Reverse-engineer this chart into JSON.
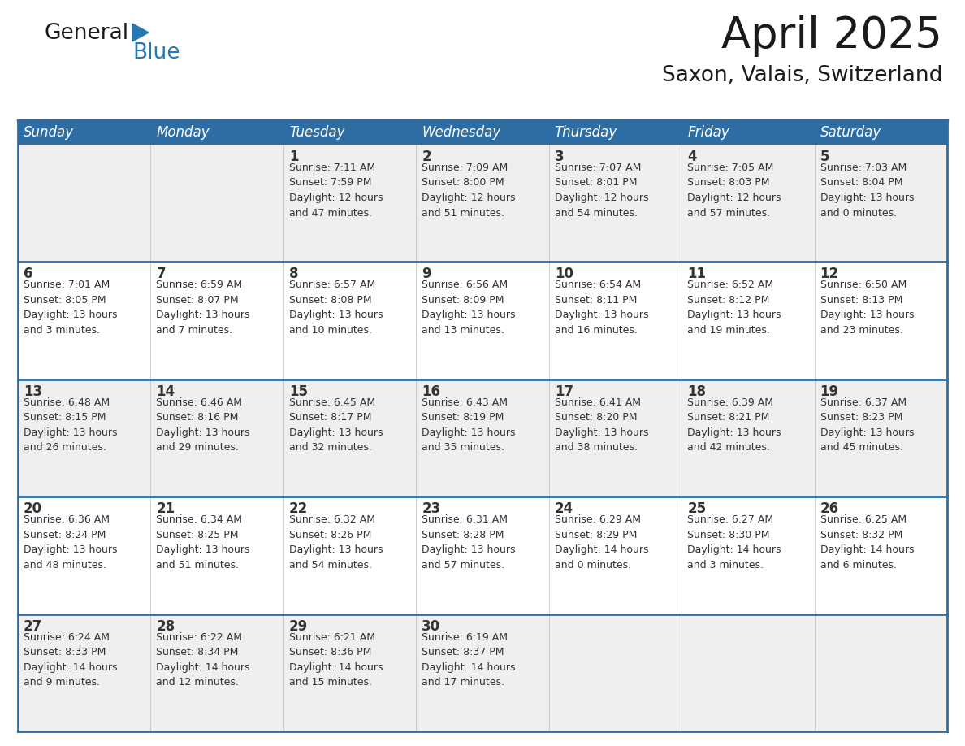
{
  "title": "April 2025",
  "subtitle": "Saxon, Valais, Switzerland",
  "header_bg_color": "#2E6DA4",
  "header_text_color": "#FFFFFF",
  "row_bg_odd": "#EFEFEF",
  "row_bg_even": "#FFFFFF",
  "cell_text_color": "#333333",
  "border_color": "#2E6DA4",
  "days_of_week": [
    "Sunday",
    "Monday",
    "Tuesday",
    "Wednesday",
    "Thursday",
    "Friday",
    "Saturday"
  ],
  "weeks": [
    [
      {
        "day": "",
        "info": ""
      },
      {
        "day": "",
        "info": ""
      },
      {
        "day": "1",
        "info": "Sunrise: 7:11 AM\nSunset: 7:59 PM\nDaylight: 12 hours\nand 47 minutes."
      },
      {
        "day": "2",
        "info": "Sunrise: 7:09 AM\nSunset: 8:00 PM\nDaylight: 12 hours\nand 51 minutes."
      },
      {
        "day": "3",
        "info": "Sunrise: 7:07 AM\nSunset: 8:01 PM\nDaylight: 12 hours\nand 54 minutes."
      },
      {
        "day": "4",
        "info": "Sunrise: 7:05 AM\nSunset: 8:03 PM\nDaylight: 12 hours\nand 57 minutes."
      },
      {
        "day": "5",
        "info": "Sunrise: 7:03 AM\nSunset: 8:04 PM\nDaylight: 13 hours\nand 0 minutes."
      }
    ],
    [
      {
        "day": "6",
        "info": "Sunrise: 7:01 AM\nSunset: 8:05 PM\nDaylight: 13 hours\nand 3 minutes."
      },
      {
        "day": "7",
        "info": "Sunrise: 6:59 AM\nSunset: 8:07 PM\nDaylight: 13 hours\nand 7 minutes."
      },
      {
        "day": "8",
        "info": "Sunrise: 6:57 AM\nSunset: 8:08 PM\nDaylight: 13 hours\nand 10 minutes."
      },
      {
        "day": "9",
        "info": "Sunrise: 6:56 AM\nSunset: 8:09 PM\nDaylight: 13 hours\nand 13 minutes."
      },
      {
        "day": "10",
        "info": "Sunrise: 6:54 AM\nSunset: 8:11 PM\nDaylight: 13 hours\nand 16 minutes."
      },
      {
        "day": "11",
        "info": "Sunrise: 6:52 AM\nSunset: 8:12 PM\nDaylight: 13 hours\nand 19 minutes."
      },
      {
        "day": "12",
        "info": "Sunrise: 6:50 AM\nSunset: 8:13 PM\nDaylight: 13 hours\nand 23 minutes."
      }
    ],
    [
      {
        "day": "13",
        "info": "Sunrise: 6:48 AM\nSunset: 8:15 PM\nDaylight: 13 hours\nand 26 minutes."
      },
      {
        "day": "14",
        "info": "Sunrise: 6:46 AM\nSunset: 8:16 PM\nDaylight: 13 hours\nand 29 minutes."
      },
      {
        "day": "15",
        "info": "Sunrise: 6:45 AM\nSunset: 8:17 PM\nDaylight: 13 hours\nand 32 minutes."
      },
      {
        "day": "16",
        "info": "Sunrise: 6:43 AM\nSunset: 8:19 PM\nDaylight: 13 hours\nand 35 minutes."
      },
      {
        "day": "17",
        "info": "Sunrise: 6:41 AM\nSunset: 8:20 PM\nDaylight: 13 hours\nand 38 minutes."
      },
      {
        "day": "18",
        "info": "Sunrise: 6:39 AM\nSunset: 8:21 PM\nDaylight: 13 hours\nand 42 minutes."
      },
      {
        "day": "19",
        "info": "Sunrise: 6:37 AM\nSunset: 8:23 PM\nDaylight: 13 hours\nand 45 minutes."
      }
    ],
    [
      {
        "day": "20",
        "info": "Sunrise: 6:36 AM\nSunset: 8:24 PM\nDaylight: 13 hours\nand 48 minutes."
      },
      {
        "day": "21",
        "info": "Sunrise: 6:34 AM\nSunset: 8:25 PM\nDaylight: 13 hours\nand 51 minutes."
      },
      {
        "day": "22",
        "info": "Sunrise: 6:32 AM\nSunset: 8:26 PM\nDaylight: 13 hours\nand 54 minutes."
      },
      {
        "day": "23",
        "info": "Sunrise: 6:31 AM\nSunset: 8:28 PM\nDaylight: 13 hours\nand 57 minutes."
      },
      {
        "day": "24",
        "info": "Sunrise: 6:29 AM\nSunset: 8:29 PM\nDaylight: 14 hours\nand 0 minutes."
      },
      {
        "day": "25",
        "info": "Sunrise: 6:27 AM\nSunset: 8:30 PM\nDaylight: 14 hours\nand 3 minutes."
      },
      {
        "day": "26",
        "info": "Sunrise: 6:25 AM\nSunset: 8:32 PM\nDaylight: 14 hours\nand 6 minutes."
      }
    ],
    [
      {
        "day": "27",
        "info": "Sunrise: 6:24 AM\nSunset: 8:33 PM\nDaylight: 14 hours\nand 9 minutes."
      },
      {
        "day": "28",
        "info": "Sunrise: 6:22 AM\nSunset: 8:34 PM\nDaylight: 14 hours\nand 12 minutes."
      },
      {
        "day": "29",
        "info": "Sunrise: 6:21 AM\nSunset: 8:36 PM\nDaylight: 14 hours\nand 15 minutes."
      },
      {
        "day": "30",
        "info": "Sunrise: 6:19 AM\nSunset: 8:37 PM\nDaylight: 14 hours\nand 17 minutes."
      },
      {
        "day": "",
        "info": ""
      },
      {
        "day": "",
        "info": ""
      },
      {
        "day": "",
        "info": ""
      }
    ]
  ],
  "logo_text_general": "General",
  "logo_text_blue": "Blue",
  "logo_color_general": "#1a1a1a",
  "logo_color_blue": "#2479B5",
  "logo_triangle_color": "#2479B5",
  "title_fontsize": 38,
  "subtitle_fontsize": 19,
  "header_fontsize": 12,
  "day_num_fontsize": 12,
  "cell_info_fontsize": 9,
  "fig_width": 11.88,
  "fig_height": 9.18,
  "fig_dpi": 100
}
